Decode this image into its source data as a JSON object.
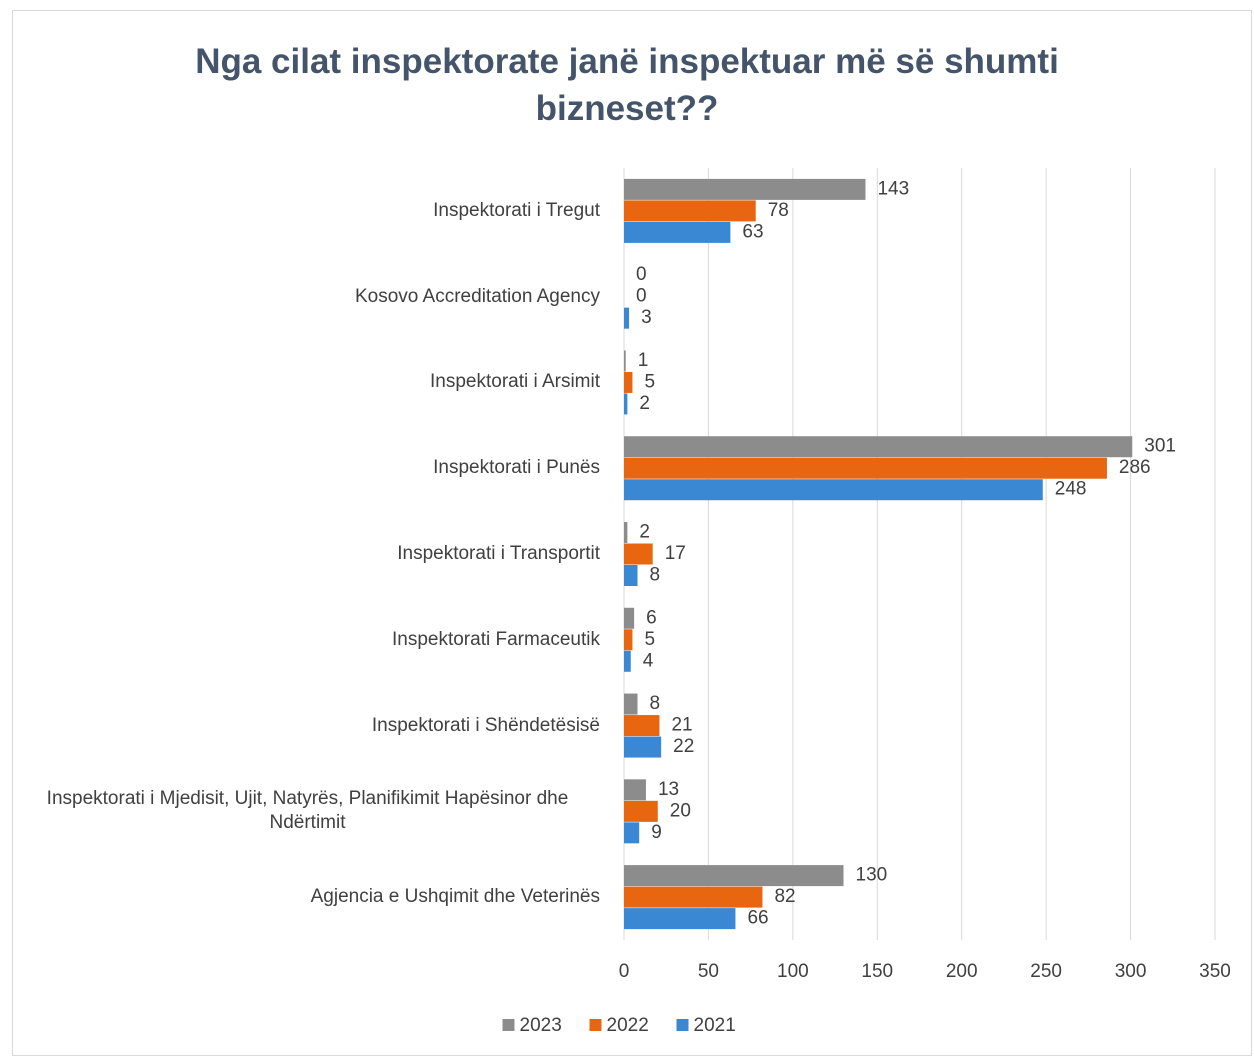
{
  "chart_data": {
    "type": "hbar",
    "title": "Nga cilat inspektorate janë inspektuar më së shumti bizneset??",
    "categories": [
      "Inspektorati i Tregut",
      "Kosovo Accreditation Agency",
      "Inspektorati i Arsimit",
      "Inspektorati i Punës",
      "Inspektorati i Transportit",
      "Inspektorati Farmaceutik",
      "Inspektorati i Shëndetësisë",
      "Inspektorati i Mjedisit, Ujit, Natyrës, Planifikimit Hapësinor dhe Ndërtimit",
      "Agjencia e Ushqimit dhe Veterinës"
    ],
    "series": [
      {
        "name": "2023",
        "color": "#8c8c8c",
        "values": [
          143,
          0,
          1,
          301,
          2,
          6,
          8,
          13,
          130
        ]
      },
      {
        "name": "2022",
        "color": "#e8660f",
        "values": [
          78,
          0,
          5,
          286,
          17,
          5,
          21,
          20,
          82
        ]
      },
      {
        "name": "2021",
        "color": "#3a87d4",
        "values": [
          63,
          3,
          2,
          248,
          8,
          4,
          22,
          9,
          66
        ]
      }
    ],
    "xlim": [
      0,
      350
    ],
    "xticks": [
      0,
      50,
      100,
      150,
      200,
      250,
      300,
      350
    ],
    "grid": true,
    "legend": "bottom"
  }
}
